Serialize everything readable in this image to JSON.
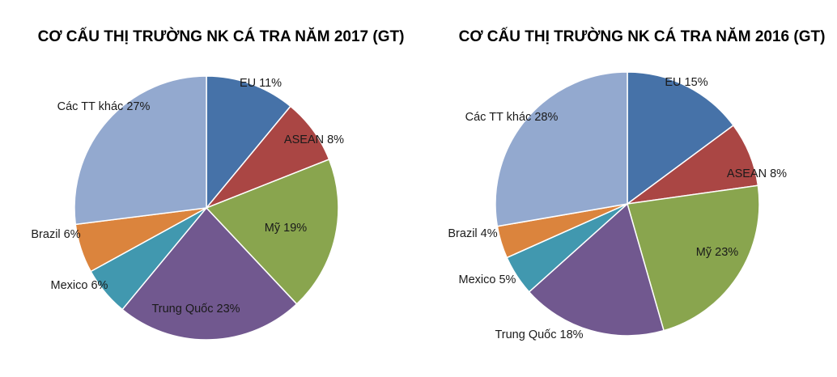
{
  "chart_data": [
    {
      "type": "pie",
      "title": "CƠ CẤU THỊ TRƯỜNG NK CÁ TRA NĂM 2017 (GT)",
      "slices": [
        {
          "name": "EU",
          "value": 11,
          "label": "EU 11%",
          "color": "#4672A8"
        },
        {
          "name": "ASEAN",
          "value": 8,
          "label": "ASEAN 8%",
          "color": "#AA4644"
        },
        {
          "name": "Mỹ",
          "value": 19,
          "label": "Mỹ 19%",
          "color": "#89A54E"
        },
        {
          "name": "Trung Quốc",
          "value": 23,
          "label": "Trung Quốc 23%",
          "color": "#71588F"
        },
        {
          "name": "Mexico",
          "value": 6,
          "label": "Mexico 6%",
          "color": "#4198AF"
        },
        {
          "name": "Brazil",
          "value": 6,
          "label": "Brazil 6%",
          "color": "#DB843D"
        },
        {
          "name": "Các TT khác",
          "value": 27,
          "label": "Các TT khác 27%",
          "color": "#93A9CF"
        }
      ]
    },
    {
      "type": "pie",
      "title": "CƠ CẤU THỊ TRƯỜNG NK CÁ TRA NĂM 2016 (GT)",
      "slices": [
        {
          "name": "EU",
          "value": 15,
          "label": "EU 15%",
          "color": "#4672A8"
        },
        {
          "name": "ASEAN",
          "value": 8,
          "label": "ASEAN 8%",
          "color": "#AA4644"
        },
        {
          "name": "Mỹ",
          "value": 23,
          "label": "Mỹ 23%",
          "color": "#89A54E"
        },
        {
          "name": "Trung Quốc",
          "value": 18,
          "label": "Trung Quốc 18%",
          "color": "#71588F"
        },
        {
          "name": "Mexico",
          "value": 5,
          "label": "Mexico 5%",
          "color": "#4198AF"
        },
        {
          "name": "Brazil",
          "value": 4,
          "label": "Brazil 4%",
          "color": "#DB843D"
        },
        {
          "name": "Các TT khác",
          "value": 28,
          "label": "Các TT khác 28%",
          "color": "#93A9CF"
        }
      ]
    }
  ]
}
